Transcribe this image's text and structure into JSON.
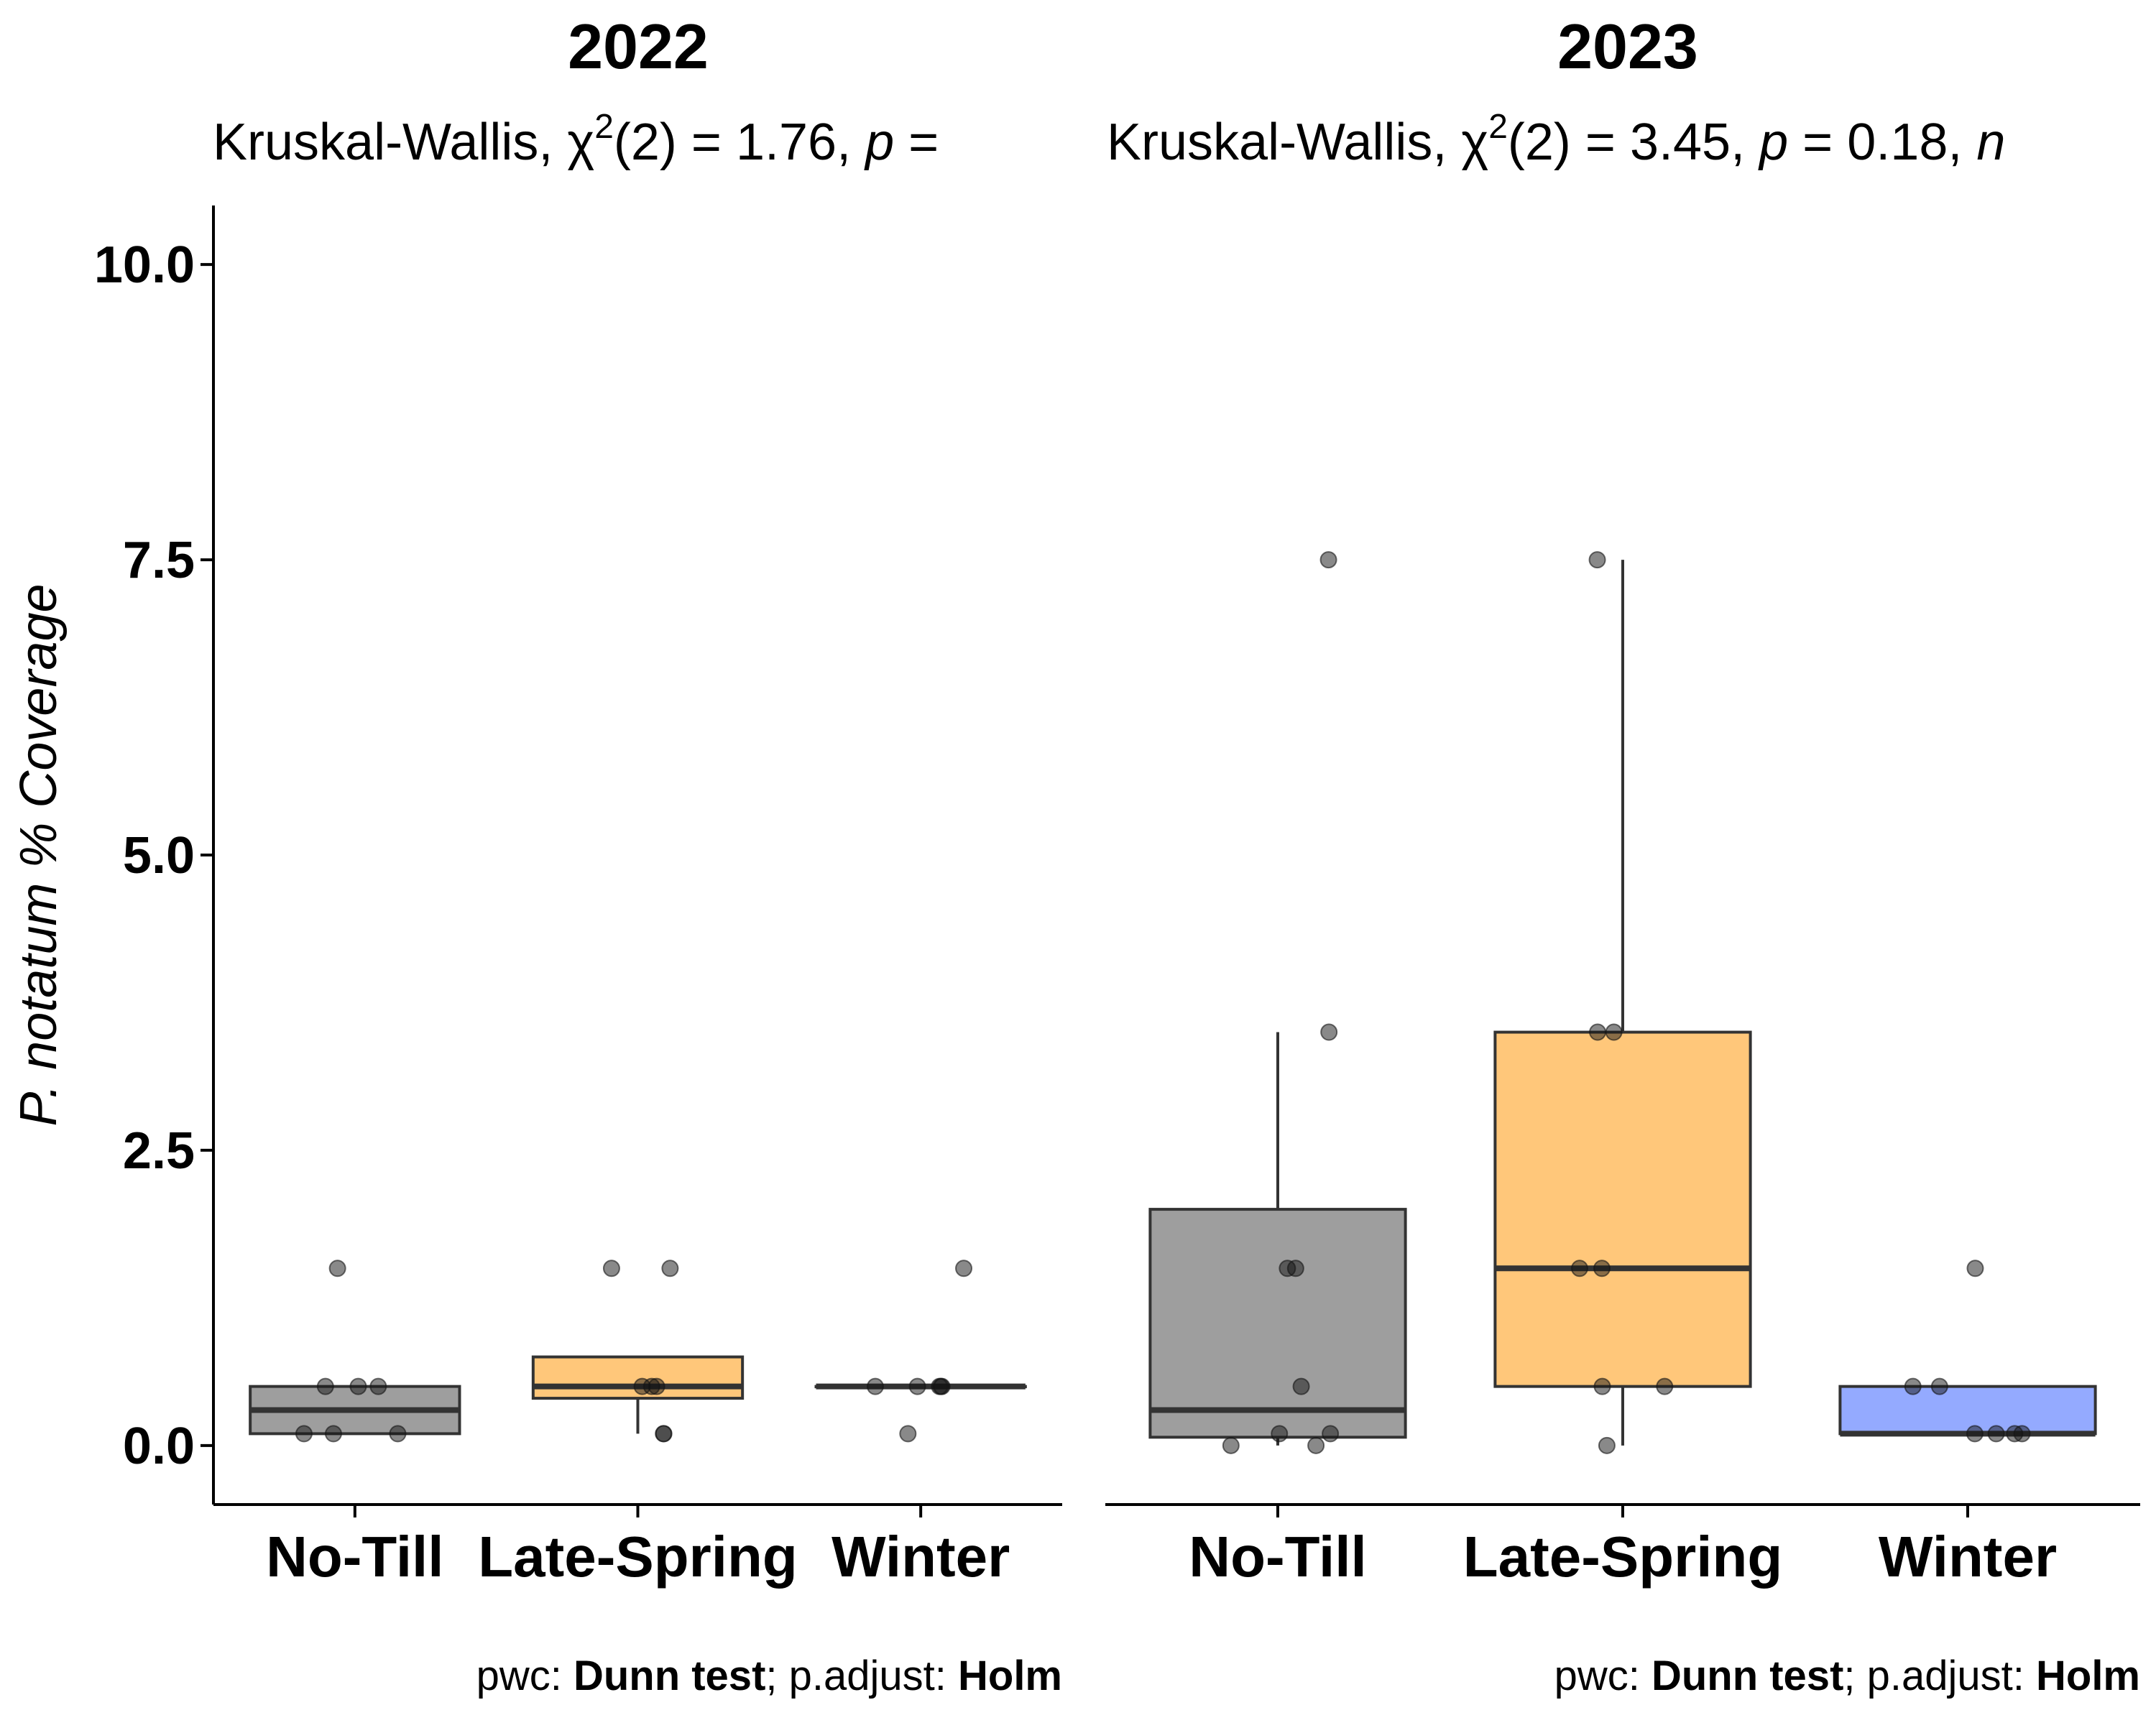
{
  "chart_data": [
    {
      "type": "box",
      "title": "2022",
      "subtitle": {
        "test": "Kruskal-Wallis,",
        "stat_symbol": "χ",
        "stat_sup": "2",
        "stat_df": "(2) = 1.76,",
        "p_symbol": "p",
        "p_value": "="
      },
      "ylabel": "P. notatum % Coverage",
      "ylim": [
        -0.5,
        10.5
      ],
      "yticks": [
        "0.0",
        "2.5",
        "5.0",
        "7.5",
        "10.0"
      ],
      "categories": [
        "No-Till",
        "Late-Spring",
        "Winter"
      ],
      "boxes": [
        {
          "name": "No-Till",
          "color": "#9e9e9e",
          "min": 0.1,
          "q1": 0.1,
          "median": 0.3,
          "q3": 0.5,
          "max": 0.5
        },
        {
          "name": "Late-Spring",
          "color": "#ffc77a",
          "min": 0.1,
          "q1": 0.4,
          "median": 0.5,
          "q3": 0.75,
          "max": 0.75
        },
        {
          "name": "Winter",
          "color": "#9e9e9e",
          "min": 0.5,
          "q1": 0.5,
          "median": 0.5,
          "q3": 0.5,
          "max": 0.5
        }
      ],
      "points": [
        [
          0.1,
          0.1,
          0.1,
          0.5,
          0.5,
          0.5,
          1.5
        ],
        [
          0.1,
          0.1,
          0.5,
          0.5,
          0.5,
          1.5,
          1.5
        ],
        [
          0.1,
          0.5,
          0.5,
          0.5,
          0.5,
          0.5,
          1.5
        ]
      ],
      "caption": {
        "pwc_label": "pwc:",
        "pwc_value": "Dunn test",
        "adj_label": "; p.adjust:",
        "adj_value": "Holm"
      }
    },
    {
      "type": "box",
      "title": "2023",
      "subtitle": {
        "test": "Kruskal-Wallis,",
        "stat_symbol": "χ",
        "stat_sup": "2",
        "stat_df": "(2) = 3.45,",
        "p_symbol": "p",
        "p_value": "= 0.18,",
        "n_symbol": "n"
      },
      "ylim": [
        -0.5,
        10.5
      ],
      "categories": [
        "No-Till",
        "Late-Spring",
        "Winter"
      ],
      "boxes": [
        {
          "name": "No-Till",
          "color": "#9e9e9e",
          "min": 0,
          "q1": 0.07,
          "median": 0.3,
          "q3": 2.0,
          "max": 3.5
        },
        {
          "name": "Late-Spring",
          "color": "#ffc77a",
          "min": 0,
          "q1": 0.5,
          "median": 1.5,
          "q3": 3.5,
          "max": 7.5
        },
        {
          "name": "Winter",
          "color": "#94aaff",
          "min": 0.1,
          "q1": 0.1,
          "median": 0.1,
          "q3": 0.5,
          "max": 0.5
        }
      ],
      "points": [
        [
          0,
          0,
          0.1,
          0.1,
          0.5,
          1.5,
          1.5,
          3.5,
          7.5
        ],
        [
          0,
          0.5,
          0.5,
          1.5,
          1.5,
          3.5,
          3.5,
          7.5
        ],
        [
          0.1,
          0.1,
          0.1,
          0.1,
          0.5,
          0.5,
          1.5
        ]
      ],
      "caption": {
        "pwc_label": "pwc:",
        "pwc_value": "Dunn test",
        "adj_label": "; p.adjust:",
        "adj_value": "Holm"
      }
    }
  ]
}
